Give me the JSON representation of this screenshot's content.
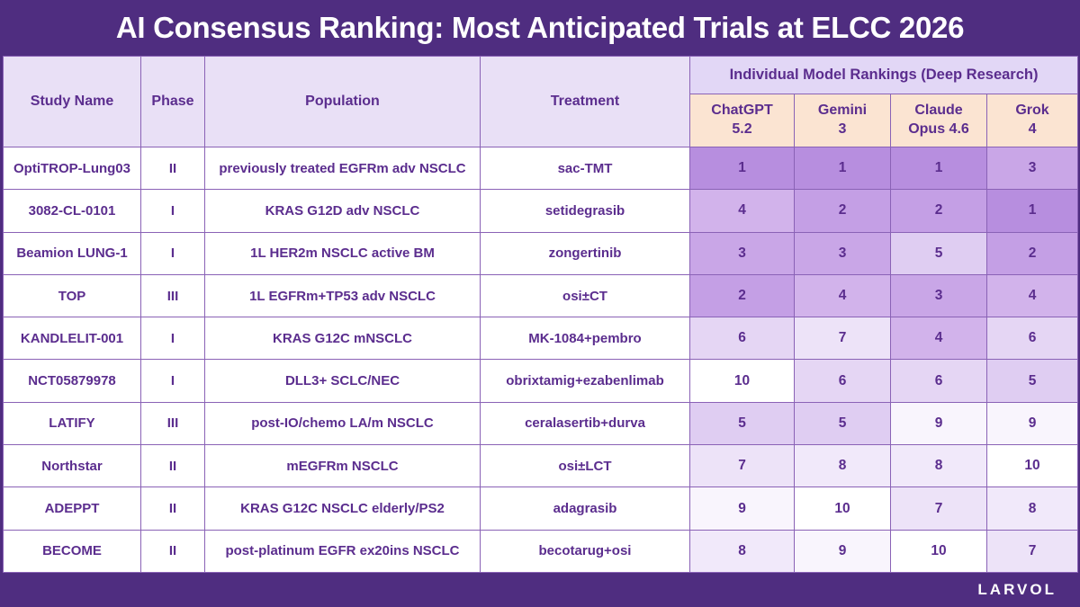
{
  "title": "AI Consensus Ranking: Most Anticipated Trials at ELCC 2026",
  "header": {
    "study": "Study Name",
    "phase": "Phase",
    "population": "Population",
    "treatment": "Treatment",
    "group": "Individual Model Rankings (Deep Research)",
    "models": [
      {
        "name": "ChatGPT",
        "version": "5.2"
      },
      {
        "name": "Gemini",
        "version": "3"
      },
      {
        "name": "Claude",
        "version": "Opus 4.6"
      },
      {
        "name": "Grok",
        "version": "4"
      }
    ]
  },
  "chart_data": {
    "type": "table",
    "title": "AI Consensus Ranking: Most Anticipated Trials at ELCC 2026",
    "columns": [
      "Study Name",
      "Phase",
      "Population",
      "Treatment",
      "ChatGPT 5.2",
      "Gemini 3",
      "Claude Opus 4.6",
      "Grok 4"
    ],
    "rows": [
      {
        "study": "OptiTROP-Lung03",
        "phase": "II",
        "population": "previously treated EGFRm adv NSCLC",
        "treatment": "sac-TMT",
        "ranks": [
          1,
          1,
          1,
          3
        ]
      },
      {
        "study": "3082-CL-0101",
        "phase": "I",
        "population": "KRAS G12D adv NSCLC",
        "treatment": "setidegrasib",
        "ranks": [
          4,
          2,
          2,
          1
        ]
      },
      {
        "study": "Beamion LUNG-1",
        "phase": "I",
        "population": "1L HER2m NSCLC active BM",
        "treatment": "zongertinib",
        "ranks": [
          3,
          3,
          5,
          2
        ]
      },
      {
        "study": "TOP",
        "phase": "III",
        "population": "1L EGFRm+TP53 adv NSCLC",
        "treatment": "osi±CT",
        "ranks": [
          2,
          4,
          3,
          4
        ]
      },
      {
        "study": "KANDLELIT-001",
        "phase": "I",
        "population": "KRAS G12C mNSCLC",
        "treatment": "MK-1084+pembro",
        "ranks": [
          6,
          7,
          4,
          6
        ]
      },
      {
        "study": "NCT05879978",
        "phase": "I",
        "population": "DLL3+ SCLC/NEC",
        "treatment": "obrixtamig+ezabenlimab",
        "ranks": [
          10,
          6,
          6,
          5
        ]
      },
      {
        "study": "LATIFY",
        "phase": "III",
        "population": "post-IO/chemo LA/m NSCLC",
        "treatment": "ceralasertib+durva",
        "ranks": [
          5,
          5,
          9,
          9
        ]
      },
      {
        "study": "Northstar",
        "phase": "II",
        "population": "mEGFRm NSCLC",
        "treatment": "osi±LCT",
        "ranks": [
          7,
          8,
          8,
          10
        ]
      },
      {
        "study": "ADEPPT",
        "phase": "II",
        "population": "KRAS G12C NSCLC elderly/PS2",
        "treatment": "adagrasib",
        "ranks": [
          9,
          10,
          7,
          8
        ]
      },
      {
        "study": "BECOME",
        "phase": "II",
        "population": "post-platinum EGFR ex20ins NSCLC",
        "treatment": "becotarug+osi",
        "ranks": [
          8,
          9,
          10,
          7
        ]
      }
    ],
    "legend_note": "heatmap: rank 1 darkest purple, rank 10 white"
  },
  "colors": {
    "page_bg": "#4f2d80",
    "grid_line": "#8a62b6",
    "header_bg": "#e9e0f6",
    "group_header_bg": "#e2d7f6",
    "model_header_bg": "#fbe4d2",
    "row_bg": "#ffffff",
    "text": "#5b2d8e",
    "title_text": "#ffffff",
    "rank_scale": {
      "1": "#b78edf",
      "2": "#c49fe5",
      "3": "#c9a6e7",
      "4": "#d2b3eb",
      "5": "#dfcdf2",
      "6": "#e5d6f4",
      "7": "#ede3f8",
      "8": "#f1e9fa",
      "9": "#f9f5fd",
      "10": "#ffffff"
    }
  },
  "footer": {
    "brand": "LARVOL"
  }
}
